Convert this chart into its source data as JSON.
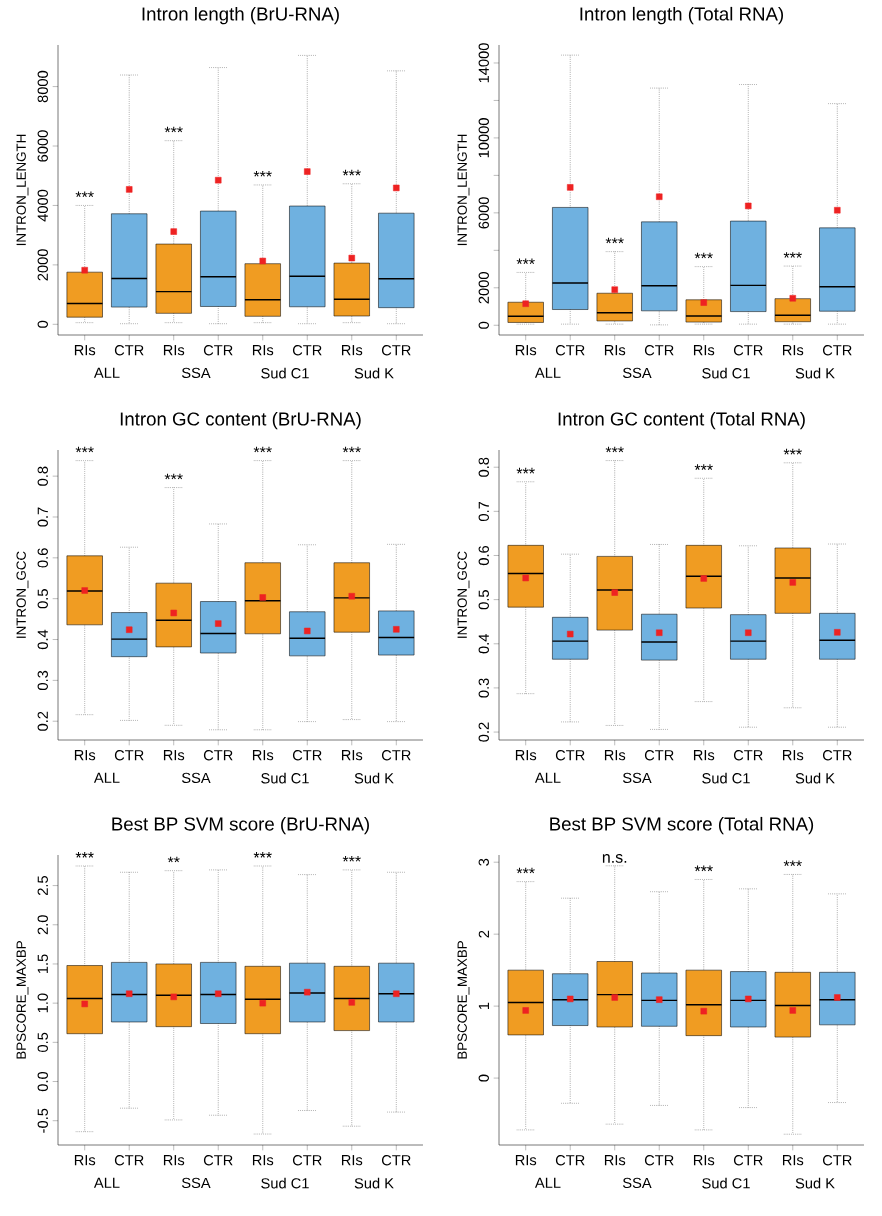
{
  "chart_data": [
    {
      "type": "box",
      "title": "Intron length (BrU-RNA)",
      "ylabel": "INTRON_LENGTH",
      "categories": [
        "RIs",
        "CTR",
        "RIs",
        "CTR",
        "RIs",
        "CTR",
        "RIs",
        "CTR"
      ],
      "colors": [
        "#f09c22",
        "#6fb1e0",
        "#f09c22",
        "#6fb1e0",
        "#f09c22",
        "#6fb1e0",
        "#f09c22",
        "#6fb1e0"
      ],
      "boxes": [
        {
          "low": 55,
          "q1": 240,
          "median": 700,
          "q3": 1755,
          "high": 4000,
          "mean": 1820
        },
        {
          "low": 20,
          "q1": 580,
          "median": 1540,
          "q3": 3720,
          "high": 8390,
          "mean": 4540
        },
        {
          "low": 55,
          "q1": 370,
          "median": 1100,
          "q3": 2700,
          "high": 6180,
          "mean": 3120
        },
        {
          "low": 20,
          "q1": 600,
          "median": 1600,
          "q3": 3810,
          "high": 8640,
          "mean": 4850
        },
        {
          "low": 55,
          "q1": 270,
          "median": 830,
          "q3": 2040,
          "high": 4690,
          "mean": 2130
        },
        {
          "low": 20,
          "q1": 590,
          "median": 1620,
          "q3": 3980,
          "high": 9050,
          "mean": 5140
        },
        {
          "low": 55,
          "q1": 280,
          "median": 840,
          "q3": 2060,
          "high": 4730,
          "mean": 2230
        },
        {
          "low": 20,
          "q1": 560,
          "median": 1530,
          "q3": 3740,
          "high": 8530,
          "mean": 4590
        }
      ],
      "ylim": [
        -360,
        9400
      ],
      "yticks": [
        0,
        2000,
        4000,
        6000,
        8000
      ],
      "annotations": [
        "***",
        "***",
        "***",
        "***",
        "ALL",
        "SSA",
        "Sud C1",
        "Sud K"
      ]
    },
    {
      "type": "box",
      "title": "Intron length (Total RNA)",
      "ylabel": "INTRON_LENGTH",
      "categories": [
        "RIs",
        "CTR",
        "RIs",
        "CTR",
        "RIs",
        "CTR",
        "RIs",
        "CTR"
      ],
      "colors": [
        "#f09c22",
        "#6fb1e0",
        "#f09c22",
        "#6fb1e0",
        "#f09c22",
        "#6fb1e0",
        "#f09c22",
        "#6fb1e0"
      ],
      "boxes": [
        {
          "low": 60,
          "q1": 150,
          "median": 480,
          "q3": 1230,
          "high": 2820,
          "mean": 1150
        },
        {
          "low": 60,
          "q1": 840,
          "median": 2260,
          "q3": 6290,
          "high": 14420,
          "mean": 7360
        },
        {
          "low": 60,
          "q1": 230,
          "median": 670,
          "q3": 1710,
          "high": 3930,
          "mean": 1900
        },
        {
          "low": 20,
          "q1": 770,
          "median": 2110,
          "q3": 5520,
          "high": 12660,
          "mean": 6860
        },
        {
          "low": 60,
          "q1": 170,
          "median": 500,
          "q3": 1360,
          "high": 3130,
          "mean": 1210
        },
        {
          "low": 60,
          "q1": 730,
          "median": 2130,
          "q3": 5560,
          "high": 12850,
          "mean": 6370
        },
        {
          "low": 60,
          "q1": 190,
          "median": 540,
          "q3": 1420,
          "high": 3160,
          "mean": 1440
        },
        {
          "low": 60,
          "q1": 750,
          "median": 2050,
          "q3": 5200,
          "high": 11830,
          "mean": 6140
        }
      ],
      "ylim": [
        -520,
        14960
      ],
      "yticks": [
        0,
        2000,
        {
          "value": 4000,
          "label": null
        },
        6000,
        {
          "value": 8000,
          "label": null
        },
        10000,
        {
          "value": 12000,
          "label": null
        },
        14000
      ],
      "annotations": [
        "***",
        "***",
        "***",
        "***",
        "ALL",
        "SSA",
        "Sud C1",
        "Sud K"
      ]
    },
    {
      "type": "box",
      "title": "Intron GC content (BrU-RNA)",
      "ylabel": "INTRON_GCC",
      "categories": [
        "RIs",
        "CTR",
        "RIs",
        "CTR",
        "RIs",
        "CTR",
        "RIs",
        "CTR"
      ],
      "colors": [
        "#f09c22",
        "#6fb1e0",
        "#f09c22",
        "#6fb1e0",
        "#f09c22",
        "#6fb1e0",
        "#f09c22",
        "#6fb1e0"
      ],
      "boxes": [
        {
          "low": 0.216,
          "q1": 0.436,
          "median": 0.519,
          "q3": 0.605,
          "high": 0.838,
          "mean": 0.52
        },
        {
          "low": 0.202,
          "q1": 0.358,
          "median": 0.401,
          "q3": 0.466,
          "high": 0.626,
          "mean": 0.424
        },
        {
          "low": 0.19,
          "q1": 0.382,
          "median": 0.447,
          "q3": 0.538,
          "high": 0.772,
          "mean": 0.465
        },
        {
          "low": 0.179,
          "q1": 0.367,
          "median": 0.415,
          "q3": 0.493,
          "high": 0.683,
          "mean": 0.439
        },
        {
          "low": 0.179,
          "q1": 0.414,
          "median": 0.495,
          "q3": 0.588,
          "high": 0.838,
          "mean": 0.503
        },
        {
          "low": 0.199,
          "q1": 0.36,
          "median": 0.403,
          "q3": 0.468,
          "high": 0.632,
          "mean": 0.421
        },
        {
          "low": 0.204,
          "q1": 0.418,
          "median": 0.502,
          "q3": 0.588,
          "high": 0.838,
          "mean": 0.506
        },
        {
          "low": 0.199,
          "q1": 0.362,
          "median": 0.405,
          "q3": 0.47,
          "high": 0.633,
          "mean": 0.425
        }
      ],
      "ylim": [
        0.154,
        0.864
      ],
      "yticks": [
        0.2,
        0.3,
        0.4,
        0.5,
        0.6,
        0.7,
        0.8
      ],
      "annotations": [
        "***",
        "***",
        "***",
        "***",
        "ALL",
        "SSA",
        "Sud C1",
        "Sud K"
      ]
    },
    {
      "type": "box",
      "title": "Intron GC content (Total RNA)",
      "ylabel": "INTRON_GCC",
      "categories": [
        "RIs",
        "CTR",
        "RIs",
        "CTR",
        "RIs",
        "CTR",
        "RIs",
        "CTR"
      ],
      "colors": [
        "#f09c22",
        "#6fb1e0",
        "#f09c22",
        "#6fb1e0",
        "#f09c22",
        "#6fb1e0",
        "#f09c22",
        "#6fb1e0"
      ],
      "boxes": [
        {
          "low": 0.287,
          "q1": 0.483,
          "median": 0.559,
          "q3": 0.623,
          "high": 0.767,
          "mean": 0.549
        },
        {
          "low": 0.223,
          "q1": 0.365,
          "median": 0.406,
          "q3": 0.46,
          "high": 0.603,
          "mean": 0.422
        },
        {
          "low": 0.215,
          "q1": 0.431,
          "median": 0.522,
          "q3": 0.598,
          "high": 0.815,
          "mean": 0.516
        },
        {
          "low": 0.206,
          "q1": 0.363,
          "median": 0.404,
          "q3": 0.467,
          "high": 0.625,
          "mean": 0.425
        },
        {
          "low": 0.269,
          "q1": 0.481,
          "median": 0.553,
          "q3": 0.623,
          "high": 0.775,
          "mean": 0.548
        },
        {
          "low": 0.211,
          "q1": 0.365,
          "median": 0.406,
          "q3": 0.466,
          "high": 0.622,
          "mean": 0.425
        },
        {
          "low": 0.255,
          "q1": 0.469,
          "median": 0.549,
          "q3": 0.617,
          "high": 0.81,
          "mean": 0.539
        },
        {
          "low": 0.211,
          "q1": 0.365,
          "median": 0.408,
          "q3": 0.469,
          "high": 0.626,
          "mean": 0.426
        }
      ],
      "ylim": [
        0.182,
        0.839
      ],
      "yticks": [
        0.2,
        0.3,
        0.4,
        0.5,
        0.6,
        0.7,
        0.8
      ],
      "annotations": [
        "***",
        "***",
        "***",
        "***",
        "ALL",
        "SSA",
        "Sud C1",
        "Sud K"
      ]
    },
    {
      "type": "box",
      "title": "Best BP SVM score (BrU-RNA)",
      "ylabel": "BPSCORE_MAXBP",
      "categories": [
        "RIs",
        "CTR",
        "RIs",
        "CTR",
        "RIs",
        "CTR",
        "RIs",
        "CTR"
      ],
      "colors": [
        "#f09c22",
        "#6fb1e0",
        "#f09c22",
        "#6fb1e0",
        "#f09c22",
        "#6fb1e0",
        "#f09c22",
        "#6fb1e0"
      ],
      "boxes": [
        {
          "low": -0.64,
          "q1": 0.61,
          "median": 1.06,
          "q3": 1.48,
          "high": 2.75,
          "mean": 0.99
        },
        {
          "low": -0.34,
          "q1": 0.76,
          "median": 1.11,
          "q3": 1.52,
          "high": 2.67,
          "mean": 1.12
        },
        {
          "low": -0.49,
          "q1": 0.7,
          "median": 1.1,
          "q3": 1.5,
          "high": 2.69,
          "mean": 1.08
        },
        {
          "low": -0.43,
          "q1": 0.74,
          "median": 1.11,
          "q3": 1.52,
          "high": 2.7,
          "mean": 1.12
        },
        {
          "low": -0.67,
          "q1": 0.61,
          "median": 1.05,
          "q3": 1.47,
          "high": 2.75,
          "mean": 1.0
        },
        {
          "low": -0.37,
          "q1": 0.76,
          "median": 1.13,
          "q3": 1.51,
          "high": 2.64,
          "mean": 1.14
        },
        {
          "low": -0.57,
          "q1": 0.65,
          "median": 1.06,
          "q3": 1.47,
          "high": 2.7,
          "mean": 1.01
        },
        {
          "low": -0.39,
          "q1": 0.76,
          "median": 1.12,
          "q3": 1.51,
          "high": 2.67,
          "mean": 1.12
        }
      ],
      "ylim": [
        -0.81,
        2.89
      ],
      "yticks": [
        {
          "value": -0.5,
          "label": "-0.5"
        },
        {
          "value": 0,
          "label": "0.0"
        },
        0.5,
        {
          "value": 1,
          "label": "1.0"
        },
        1.5,
        {
          "value": 2,
          "label": "2.0"
        },
        2.5
      ],
      "annotations": [
        "***",
        "**",
        "***",
        "***",
        "ALL",
        "SSA",
        "Sud C1",
        "Sud K"
      ]
    },
    {
      "type": "box",
      "title": "Best BP SVM score (Total RNA)",
      "ylabel": "BPSCORE_MAXBP",
      "categories": [
        "RIs",
        "CTR",
        "RIs",
        "CTR",
        "RIs",
        "CTR",
        "RIs",
        "CTR"
      ],
      "colors": [
        "#f09c22",
        "#6fb1e0",
        "#f09c22",
        "#6fb1e0",
        "#f09c22",
        "#6fb1e0",
        "#f09c22",
        "#6fb1e0"
      ],
      "boxes": [
        {
          "low": -0.72,
          "q1": 0.6,
          "median": 1.05,
          "q3": 1.5,
          "high": 2.73,
          "mean": 0.94
        },
        {
          "low": -0.35,
          "q1": 0.73,
          "median": 1.09,
          "q3": 1.45,
          "high": 2.5,
          "mean": 1.1
        },
        {
          "low": -0.64,
          "q1": 0.71,
          "median": 1.16,
          "q3": 1.62,
          "high": 2.95,
          "mean": 1.12
        },
        {
          "low": -0.38,
          "q1": 0.72,
          "median": 1.08,
          "q3": 1.46,
          "high": 2.59,
          "mean": 1.09
        },
        {
          "low": -0.72,
          "q1": 0.59,
          "median": 1.02,
          "q3": 1.5,
          "high": 2.76,
          "mean": 0.93
        },
        {
          "low": -0.41,
          "q1": 0.71,
          "median": 1.08,
          "q3": 1.48,
          "high": 2.63,
          "mean": 1.1
        },
        {
          "low": -0.78,
          "q1": 0.57,
          "median": 1.01,
          "q3": 1.47,
          "high": 2.83,
          "mean": 0.94
        },
        {
          "low": -0.34,
          "q1": 0.74,
          "median": 1.09,
          "q3": 1.47,
          "high": 2.56,
          "mean": 1.12
        }
      ],
      "ylim": [
        -0.93,
        3.1
      ],
      "yticks": [
        0,
        1,
        2,
        3
      ],
      "annotations": [
        "***",
        "n.s.",
        "***",
        "***",
        "ALL",
        "SSA",
        "Sud C1",
        "Sud K"
      ]
    }
  ]
}
